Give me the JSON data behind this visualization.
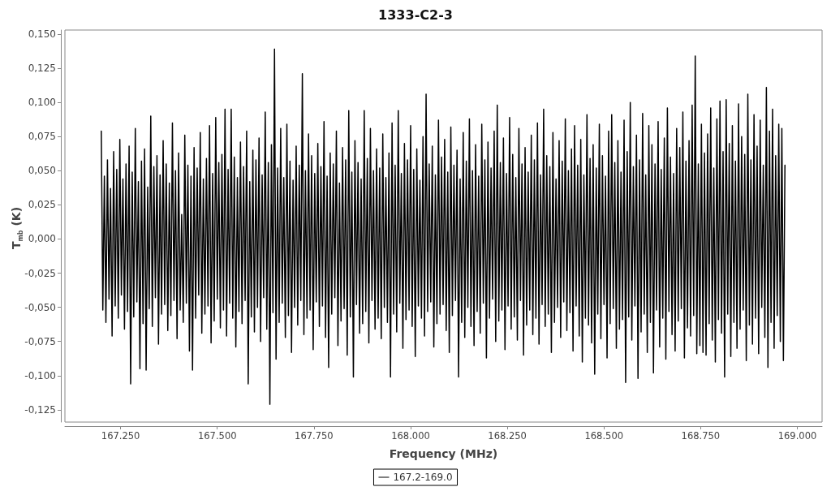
{
  "chart_data": {
    "type": "line",
    "title": "1333-C2-3",
    "xlabel": "Frequency (MHz)",
    "ylabel": "T$_{mb}$ (K)",
    "x": [
      167200,
      167204,
      167208,
      167212,
      167216,
      167220,
      167224,
      167228,
      167232,
      167236,
      167240,
      167244,
      167248,
      167252,
      167256,
      167260,
      167264,
      167268,
      167272,
      167276,
      167280,
      167284,
      167288,
      167292,
      167296,
      167300,
      167304,
      167308,
      167312,
      167316,
      167320,
      167324,
      167328,
      167332,
      167336,
      167340,
      167344,
      167348,
      167352,
      167356,
      167360,
      167364,
      167368,
      167372,
      167376,
      167380,
      167384,
      167388,
      167392,
      167396,
      167400,
      167404,
      167408,
      167412,
      167416,
      167420,
      167424,
      167428,
      167432,
      167436,
      167440,
      167444,
      167448,
      167452,
      167456,
      167460,
      167464,
      167468,
      167472,
      167476,
      167480,
      167484,
      167488,
      167492,
      167496,
      167500,
      167504,
      167508,
      167512,
      167516,
      167520,
      167524,
      167528,
      167532,
      167536,
      167540,
      167544,
      167548,
      167552,
      167556,
      167560,
      167564,
      167568,
      167572,
      167576,
      167580,
      167584,
      167588,
      167592,
      167596,
      167600,
      167604,
      167608,
      167612,
      167616,
      167620,
      167624,
      167628,
      167632,
      167636,
      167640,
      167644,
      167648,
      167652,
      167656,
      167660,
      167664,
      167668,
      167672,
      167676,
      167680,
      167684,
      167688,
      167692,
      167696,
      167700,
      167704,
      167708,
      167712,
      167716,
      167720,
      167724,
      167728,
      167732,
      167736,
      167740,
      167744,
      167748,
      167752,
      167756,
      167760,
      167764,
      167768,
      167772,
      167776,
      167780,
      167784,
      167788,
      167792,
      167796,
      167800,
      167804,
      167808,
      167812,
      167816,
      167820,
      167824,
      167828,
      167832,
      167836,
      167840,
      167844,
      167848,
      167852,
      167856,
      167860,
      167864,
      167868,
      167872,
      167876,
      167880,
      167884,
      167888,
      167892,
      167896,
      167900,
      167904,
      167908,
      167912,
      167916,
      167920,
      167924,
      167928,
      167932,
      167936,
      167940,
      167944,
      167948,
      167952,
      167956,
      167960,
      167964,
      167968,
      167972,
      167976,
      167980,
      167984,
      167988,
      167992,
      167996,
      168000,
      168004,
      168008,
      168012,
      168016,
      168020,
      168024,
      168028,
      168032,
      168036,
      168040,
      168044,
      168048,
      168052,
      168056,
      168060,
      168064,
      168068,
      168072,
      168076,
      168080,
      168084,
      168088,
      168092,
      168096,
      168100,
      168104,
      168108,
      168112,
      168116,
      168120,
      168124,
      168128,
      168132,
      168136,
      168140,
      168144,
      168148,
      168152,
      168156,
      168160,
      168164,
      168168,
      168172,
      168176,
      168180,
      168184,
      168188,
      168192,
      168196,
      168200,
      168204,
      168208,
      168212,
      168216,
      168220,
      168224,
      168228,
      168232,
      168236,
      168240,
      168244,
      168248,
      168252,
      168256,
      168260,
      168264,
      168268,
      168272,
      168276,
      168280,
      168284,
      168288,
      168292,
      168296,
      168300,
      168304,
      168308,
      168312,
      168316,
      168320,
      168324,
      168328,
      168332,
      168336,
      168340,
      168344,
      168348,
      168352,
      168356,
      168360,
      168364,
      168368,
      168372,
      168376,
      168380,
      168384,
      168388,
      168392,
      168396,
      168400,
      168404,
      168408,
      168412,
      168416,
      168420,
      168424,
      168428,
      168432,
      168436,
      168440,
      168444,
      168448,
      168452,
      168456,
      168460,
      168464,
      168468,
      168472,
      168476,
      168480,
      168484,
      168488,
      168492,
      168496,
      168500,
      168504,
      168508,
      168512,
      168516,
      168520,
      168524,
      168528,
      168532,
      168536,
      168540,
      168544,
      168548,
      168552,
      168556,
      168560,
      168564,
      168568,
      168572,
      168576,
      168580,
      168584,
      168588,
      168592,
      168596,
      168600,
      168604,
      168608,
      168612,
      168616,
      168620,
      168624,
      168628,
      168632,
      168636,
      168640,
      168644,
      168648,
      168652,
      168656,
      168660,
      168664,
      168668,
      168672,
      168676,
      168680,
      168684,
      168688,
      168692,
      168696,
      168700,
      168704,
      168708,
      168712,
      168716,
      168720,
      168724,
      168728,
      168732,
      168736,
      168740,
      168744,
      168748,
      168752,
      168756,
      168760,
      168764,
      168768,
      168772,
      168776,
      168780,
      168784,
      168788,
      168792,
      168796,
      168800,
      168804,
      168808,
      168812,
      168816,
      168820,
      168824,
      168828,
      168832,
      168836,
      168840,
      168844,
      168848,
      168852,
      168856,
      168860,
      168864,
      168868,
      168872,
      168876,
      168880,
      168884,
      168888,
      168892,
      168896,
      168900,
      168904,
      168908,
      168912,
      168916,
      168920,
      168924,
      168928,
      168932,
      168936,
      168940,
      168944,
      168948,
      168952,
      168956,
      168960,
      168964,
      168968
    ],
    "series": [
      {
        "name": "167.2-169.0",
        "color": "#000000",
        "values": [
          0.079,
          -0.052,
          0.046,
          -0.061,
          0.058,
          -0.044,
          0.037,
          -0.071,
          0.064,
          -0.049,
          0.051,
          -0.058,
          0.073,
          -0.041,
          0.044,
          -0.066,
          0.055,
          -0.053,
          0.068,
          -0.106,
          0.049,
          -0.057,
          0.081,
          -0.046,
          0.042,
          -0.095,
          0.057,
          -0.062,
          0.066,
          -0.096,
          0.038,
          -0.051,
          0.09,
          -0.064,
          0.053,
          -0.043,
          0.061,
          -0.077,
          0.047,
          -0.055,
          0.072,
          -0.048,
          0.055,
          -0.067,
          0.041,
          -0.056,
          0.085,
          -0.045,
          0.05,
          -0.073,
          0.063,
          -0.052,
          0.018,
          -0.061,
          0.076,
          -0.047,
          0.054,
          -0.082,
          0.046,
          -0.096,
          0.067,
          -0.058,
          0.052,
          -0.041,
          0.078,
          -0.069,
          0.044,
          -0.055,
          0.059,
          -0.049,
          0.083,
          -0.076,
          0.048,
          -0.06,
          0.089,
          -0.044,
          0.056,
          -0.065,
          0.062,
          -0.052,
          0.095,
          -0.071,
          0.051,
          -0.047,
          0.095,
          -0.058,
          0.06,
          -0.079,
          0.045,
          -0.053,
          0.071,
          -0.062,
          0.053,
          -0.045,
          0.079,
          -0.106,
          0.042,
          -0.057,
          0.065,
          -0.068,
          0.058,
          -0.05,
          0.074,
          -0.075,
          0.047,
          -0.043,
          0.093,
          -0.066,
          0.056,
          -0.121,
          0.069,
          -0.054,
          0.139,
          -0.088,
          0.052,
          -0.061,
          0.081,
          -0.047,
          0.045,
          -0.072,
          0.084,
          -0.056,
          0.057,
          -0.083,
          0.043,
          -0.05,
          0.068,
          -0.063,
          0.054,
          -0.045,
          0.121,
          -0.07,
          0.05,
          -0.058,
          0.077,
          -0.052,
          0.061,
          -0.081,
          0.048,
          -0.046,
          0.07,
          -0.064,
          0.053,
          -0.049,
          0.086,
          -0.072,
          0.046,
          -0.094,
          0.063,
          -0.055,
          0.055,
          -0.043,
          0.079,
          -0.078,
          0.041,
          -0.06,
          0.067,
          -0.051,
          0.058,
          -0.085,
          0.094,
          -0.057,
          0.049,
          -0.101,
          0.072,
          -0.048,
          0.056,
          -0.069,
          0.044,
          -0.062,
          0.094,
          -0.053,
          0.059,
          -0.076,
          0.081,
          -0.045,
          0.05,
          -0.066,
          0.066,
          -0.058,
          0.052,
          -0.073,
          0.077,
          -0.05,
          0.045,
          -0.061,
          0.063,
          -0.101,
          0.085,
          -0.055,
          0.054,
          -0.068,
          0.094,
          -0.047,
          0.048,
          -0.08,
          0.07,
          -0.059,
          0.058,
          -0.052,
          0.083,
          -0.064,
          0.051,
          -0.086,
          0.066,
          -0.049,
          0.043,
          -0.058,
          0.075,
          -0.071,
          0.106,
          -0.053,
          0.055,
          -0.046,
          0.068,
          -0.079,
          0.047,
          -0.062,
          0.087,
          -0.055,
          0.06,
          -0.048,
          0.073,
          -0.067,
          0.049,
          -0.083,
          0.082,
          -0.056,
          0.054,
          -0.045,
          0.065,
          -0.101,
          0.044,
          -0.061,
          0.078,
          -0.072,
          0.057,
          -0.05,
          0.088,
          -0.064,
          0.05,
          -0.078,
          0.069,
          -0.053,
          0.046,
          -0.069,
          0.084,
          -0.047,
          0.058,
          -0.087,
          0.071,
          -0.058,
          0.052,
          -0.044,
          0.079,
          -0.075,
          0.098,
          -0.06,
          0.056,
          -0.052,
          0.074,
          -0.081,
          0.048,
          -0.049,
          0.089,
          -0.066,
          0.062,
          -0.057,
          0.045,
          -0.074,
          0.081,
          -0.045,
          0.055,
          -0.085,
          0.067,
          -0.063,
          0.049,
          -0.052,
          0.076,
          -0.07,
          0.058,
          -0.058,
          0.085,
          -0.077,
          0.047,
          -0.048,
          0.095,
          -0.064,
          0.061,
          -0.055,
          0.053,
          -0.083,
          0.078,
          -0.061,
          0.044,
          -0.05,
          0.072,
          -0.072,
          0.057,
          -0.046,
          0.088,
          -0.067,
          0.05,
          -0.054,
          0.066,
          -0.082,
          0.083,
          -0.049,
          0.054,
          -0.071,
          0.073,
          -0.09,
          0.047,
          -0.058,
          0.091,
          -0.063,
          0.059,
          -0.076,
          0.069,
          -0.099,
          0.052,
          -0.055,
          0.084,
          -0.073,
          0.061,
          -0.048,
          0.046,
          -0.087,
          0.079,
          -0.062,
          0.091,
          -0.051,
          0.056,
          -0.08,
          0.072,
          -0.066,
          0.049,
          -0.059,
          0.087,
          -0.105,
          0.064,
          -0.057,
          0.1,
          -0.074,
          0.053,
          -0.049,
          0.076,
          -0.102,
          0.058,
          -0.068,
          0.092,
          -0.055,
          0.047,
          -0.083,
          0.083,
          -0.061,
          0.069,
          -0.098,
          0.055,
          -0.052,
          0.086,
          -0.079,
          0.051,
          -0.058,
          0.074,
          -0.088,
          0.096,
          -0.053,
          0.06,
          -0.07,
          0.048,
          -0.082,
          0.081,
          -0.06,
          0.067,
          -0.051,
          0.093,
          -0.087,
          0.057,
          -0.065,
          0.072,
          -0.071,
          0.098,
          -0.056,
          0.134,
          -0.084,
          0.055,
          -0.078,
          0.084,
          -0.083,
          0.063,
          -0.085,
          0.077,
          -0.062,
          0.096,
          -0.074,
          0.052,
          -0.09,
          0.088,
          -0.059,
          0.101,
          -0.069,
          0.064,
          -0.101,
          0.102,
          -0.055,
          0.07,
          -0.086,
          0.083,
          -0.061,
          0.057,
          -0.08,
          0.099,
          -0.066,
          0.075,
          -0.052,
          0.062,
          -0.089,
          0.106,
          -0.063,
          0.058,
          -0.077,
          0.091,
          -0.058,
          0.068,
          -0.084,
          0.087,
          -0.05,
          0.054,
          -0.072,
          0.111,
          -0.094,
          0.079,
          -0.061,
          0.095,
          -0.08,
          0.061,
          -0.056,
          0.084,
          -0.075,
          0.081,
          -0.089,
          0.054
        ]
      }
    ],
    "xlim": [
      167106,
      169064
    ],
    "ylim": [
      -0.134,
      0.153
    ],
    "xticks": [
      {
        "value": 167250,
        "label": "167.250"
      },
      {
        "value": 167500,
        "label": "167.500"
      },
      {
        "value": 167750,
        "label": "167.750"
      },
      {
        "value": 168000,
        "label": "168.000"
      },
      {
        "value": 168250,
        "label": "168.250"
      },
      {
        "value": 168500,
        "label": "168.500"
      },
      {
        "value": 168750,
        "label": "168.750"
      },
      {
        "value": 169000,
        "label": "169.000"
      }
    ],
    "yticks": [
      {
        "value": -0.125,
        "label": "-0,125"
      },
      {
        "value": -0.1,
        "label": "-0,100"
      },
      {
        "value": -0.075,
        "label": "-0,075"
      },
      {
        "value": -0.05,
        "label": "-0,050"
      },
      {
        "value": -0.025,
        "label": "-0,025"
      },
      {
        "value": 0,
        "label": "0,000"
      },
      {
        "value": 0.025,
        "label": "0,025"
      },
      {
        "value": 0.05,
        "label": "0,050"
      },
      {
        "value": 0.075,
        "label": "0,075"
      },
      {
        "value": 0.1,
        "label": "0,100"
      },
      {
        "value": 0.125,
        "label": "0,125"
      },
      {
        "value": 0.15,
        "label": "0,150"
      }
    ],
    "grid": false,
    "legend": "bottom"
  }
}
